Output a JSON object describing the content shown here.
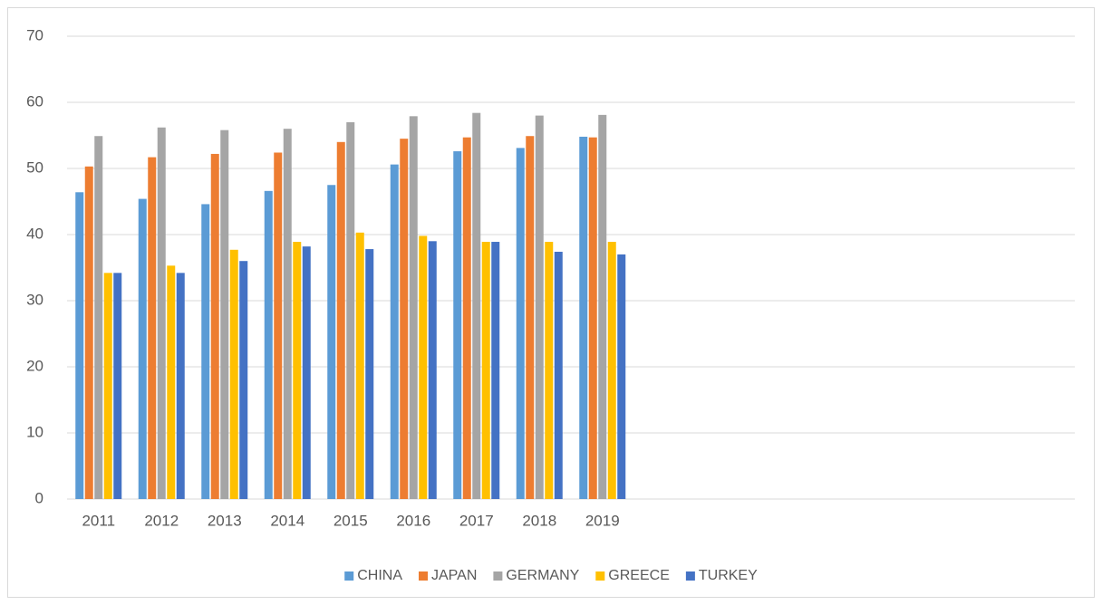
{
  "chart_data": {
    "type": "bar",
    "categories": [
      "2011",
      "2012",
      "2013",
      "2014",
      "2015",
      "2016",
      "2017",
      "2018",
      "2019",
      null,
      null,
      null,
      null,
      null,
      null,
      null
    ],
    "series": [
      {
        "name": "CHINA",
        "color": "#5b9bd5",
        "values": [
          46.4,
          45.4,
          44.6,
          46.6,
          47.5,
          50.6,
          52.6,
          53.1,
          54.8,
          null,
          null,
          null,
          null,
          null,
          null,
          null
        ]
      },
      {
        "name": "JAPAN",
        "color": "#ed7d31",
        "values": [
          50.3,
          51.7,
          52.2,
          52.4,
          54.0,
          54.5,
          54.7,
          54.9,
          54.7,
          null,
          null,
          null,
          null,
          null,
          null,
          null
        ]
      },
      {
        "name": "GERMANY",
        "color": "#a5a5a5",
        "values": [
          54.9,
          56.2,
          55.8,
          56.0,
          57.0,
          57.9,
          58.4,
          58.0,
          58.1,
          null,
          null,
          null,
          null,
          null,
          null,
          null
        ]
      },
      {
        "name": "GREECE",
        "color": "#ffc000",
        "values": [
          34.2,
          35.3,
          37.7,
          38.9,
          40.3,
          39.8,
          38.9,
          38.9,
          38.9,
          null,
          null,
          null,
          null,
          null,
          null,
          null
        ]
      },
      {
        "name": "TURKEY",
        "color": "#4472c4",
        "values": [
          34.2,
          34.2,
          36.0,
          38.2,
          37.8,
          39.0,
          38.9,
          37.4,
          37.0,
          null,
          null,
          null,
          null,
          null,
          null,
          null
        ]
      }
    ],
    "ylim": [
      0,
      70
    ],
    "yticks": [
      0,
      10,
      20,
      30,
      40,
      50,
      60,
      70
    ],
    "grid": true,
    "legend": "bottom"
  }
}
